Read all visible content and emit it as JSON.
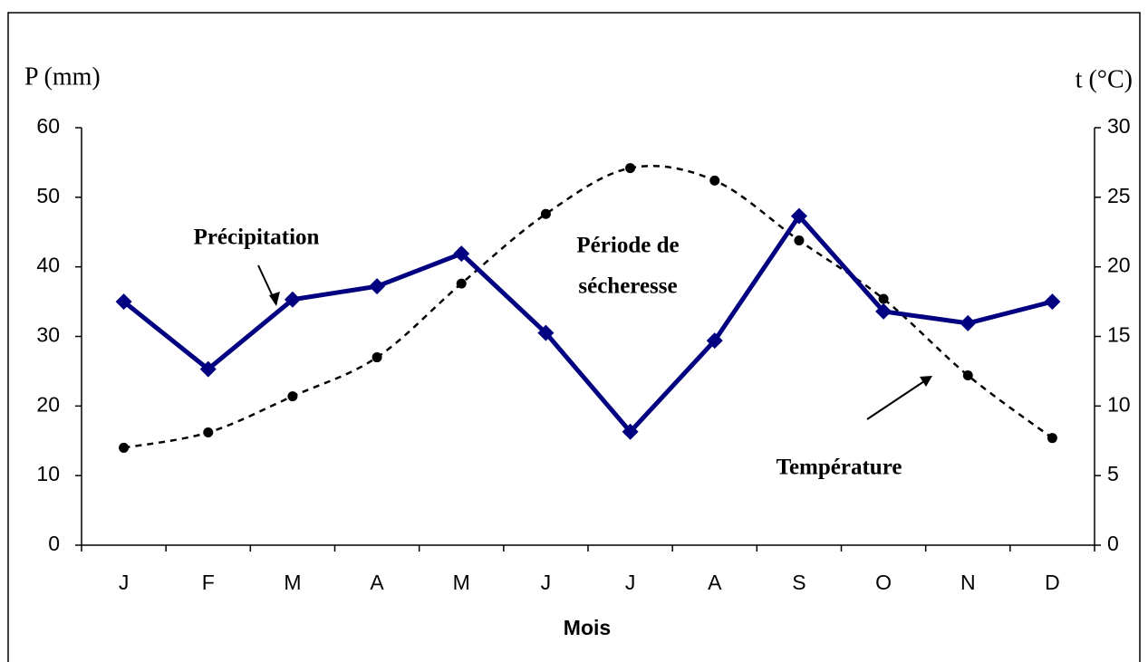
{
  "chart_data": {
    "type": "line",
    "ylabel": "P (mm)",
    "y2label": "t (°C)",
    "xlabel": "Mois",
    "categories": [
      "J",
      "F",
      "M",
      "A",
      "M",
      "J",
      "J",
      "A",
      "S",
      "O",
      "N",
      "D"
    ],
    "series": [
      {
        "name": "Précipitation",
        "color": "#000080",
        "values": [
          35,
          25.3,
          35.3,
          37.2,
          41.9,
          30.5,
          16.3,
          29.4,
          47.3,
          33.6,
          31.9,
          35
        ]
      },
      {
        "name": "Température",
        "color": "#000000",
        "axis": "y2",
        "values": [
          7.0,
          8.1,
          10.7,
          13.5,
          18.8,
          23.8,
          27.1,
          26.2,
          21.9,
          17.7,
          12.2,
          7.7
        ]
      }
    ],
    "annotations": [
      "Période de",
      "sécheresse"
    ],
    "ylim": [
      0,
      60
    ],
    "yticks": [
      0,
      10,
      20,
      30,
      40,
      50,
      60
    ],
    "y2lim": [
      0,
      30
    ],
    "y2ticks": [
      0,
      5,
      10,
      15,
      20,
      25,
      30
    ]
  }
}
